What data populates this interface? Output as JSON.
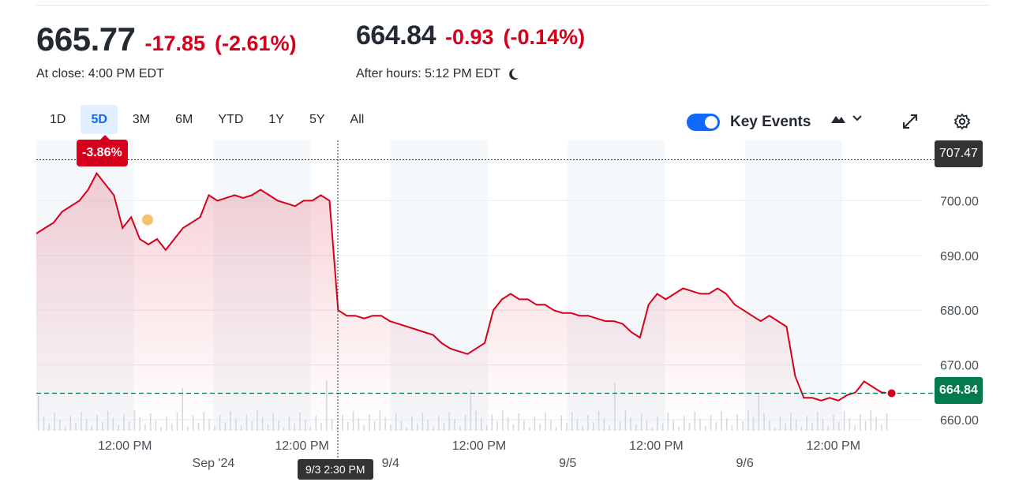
{
  "quote": {
    "close_price": "665.77",
    "close_change": "-17.85",
    "close_change_pct": "(-2.61%)",
    "close_label": "At close: 4:00 PM EDT",
    "after_price": "664.84",
    "after_change": "-0.93",
    "after_change_pct": "(-0.14%)",
    "after_label": "After hours: 5:12 PM EDT"
  },
  "ranges": [
    "1D",
    "5D",
    "3M",
    "6M",
    "YTD",
    "1Y",
    "5Y",
    "All"
  ],
  "active_range": "5D",
  "key_events": {
    "label": "Key Events",
    "enabled": true
  },
  "hover": {
    "change_pct": "-3.86%",
    "time_label": "9/3 2:30 PM"
  },
  "colors": {
    "down": "#d6001c",
    "close_line": "#047a4f",
    "accent": "#0f69ff"
  },
  "chart_data": {
    "type": "area",
    "ylim": [
      658,
      711
    ],
    "y_ticks": [
      {
        "value": 700,
        "label": "700.00"
      },
      {
        "value": 690,
        "label": "690.00"
      },
      {
        "value": 680,
        "label": "680.00"
      },
      {
        "value": 670,
        "label": "670.00"
      },
      {
        "value": 660,
        "label": "660.00"
      }
    ],
    "x_tick_labels": [
      {
        "pos": 0.5,
        "label": "12:00 PM",
        "row": 1
      },
      {
        "pos": 1.0,
        "label": "Sep '24",
        "row": 2
      },
      {
        "pos": 1.5,
        "label": "12:00 PM",
        "row": 1
      },
      {
        "pos": 2.0,
        "label": "9/4",
        "row": 2
      },
      {
        "pos": 2.5,
        "label": "12:00 PM",
        "row": 1
      },
      {
        "pos": 3.0,
        "label": "9/5",
        "row": 2
      },
      {
        "pos": 3.5,
        "label": "12:00 PM",
        "row": 1
      },
      {
        "pos": 4.0,
        "label": "9/6",
        "row": 2
      },
      {
        "pos": 4.5,
        "label": "12:00 PM",
        "row": 1
      }
    ],
    "crosshair_price": "707.47",
    "crosshair_value": 707.47,
    "current_price": "664.84",
    "current_value": 664.84,
    "key_event_value": 696.5,
    "series": [
      {
        "values": [
          694,
          695,
          696,
          698,
          699,
          700,
          702,
          705,
          703,
          701,
          695,
          697,
          693,
          692,
          693,
          691,
          693,
          695,
          696,
          697,
          701,
          700,
          700.5,
          701,
          700.5,
          701,
          702,
          701,
          700,
          699.5,
          699,
          700,
          700,
          701,
          700,
          680,
          679,
          679,
          678.5,
          679,
          679,
          678,
          677.5,
          677,
          676.5,
          676,
          675.5,
          674,
          673,
          672.5,
          672,
          673,
          674,
          680,
          682,
          683,
          682,
          682,
          681,
          681,
          680,
          679.5,
          679.5,
          679,
          679,
          678.5,
          678,
          678,
          677.5,
          676,
          675,
          681,
          683,
          682,
          683,
          684,
          683.5,
          683,
          683,
          684,
          683,
          681,
          680,
          679,
          678,
          679,
          678,
          677,
          668,
          664,
          664,
          663.5,
          664,
          663.5,
          664.5,
          665,
          667,
          666,
          665,
          664.84
        ]
      }
    ]
  }
}
